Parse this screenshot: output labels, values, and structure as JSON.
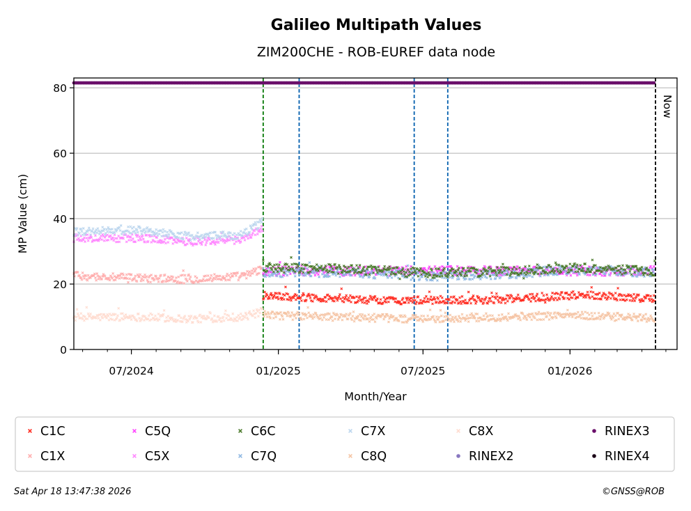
{
  "chart_data": {
    "type": "scatter",
    "title": "Galileo Multipath Values",
    "subtitle": "ZIM200CHE - ROB-EUREF data node",
    "xlabel": "Month/Year",
    "ylabel": "MP Value (cm)",
    "xlim": [
      "2024-04-20",
      "2026-05-15"
    ],
    "ylim": [
      0,
      83
    ],
    "yticks": [
      0,
      20,
      40,
      60,
      80
    ],
    "grid_y": true,
    "xticks": [
      {
        "date": "2024-07-01",
        "label": "07/2024"
      },
      {
        "date": "2025-01-01",
        "label": "01/2025"
      },
      {
        "date": "2025-07-01",
        "label": "07/2025"
      },
      {
        "date": "2026-01-01",
        "label": "01/2026"
      }
    ],
    "now_date": "2026-04-18",
    "now_label": "Now",
    "event_lines": [
      {
        "date": "2024-12-13",
        "color": "#007700"
      },
      {
        "date": "2025-01-27",
        "color": "#005fae"
      },
      {
        "date": "2025-06-20",
        "color": "#005fae"
      },
      {
        "date": "2025-08-01",
        "color": "#005fae"
      }
    ],
    "series": [
      {
        "name": "C1C",
        "color": "#ff2a1f",
        "marker": "x",
        "start": "2024-12-13",
        "end": "2026-04-17",
        "trend": [
          [
            "2024-12-13",
            16.5
          ],
          [
            "2025-05-15",
            15.0
          ],
          [
            "2025-10-01",
            15.2
          ],
          [
            "2026-01-20",
            16.8
          ],
          [
            "2026-04-17",
            15.5
          ]
        ]
      },
      {
        "name": "C1X",
        "color": "#ffadad",
        "marker": "x",
        "start": "2024-04-20",
        "end": "2024-12-12",
        "trend": [
          [
            "2024-04-20",
            22.5
          ],
          [
            "2024-06-15",
            22.0
          ],
          [
            "2024-09-15",
            21.5
          ],
          [
            "2024-11-20",
            22.5
          ],
          [
            "2024-12-12",
            24.5
          ]
        ]
      },
      {
        "name": "C5Q",
        "color": "#ff44ff",
        "marker": "x",
        "start": "2024-12-13",
        "end": "2026-04-17",
        "trend": [
          [
            "2024-12-13",
            24.0
          ],
          [
            "2026-04-17",
            24.0
          ]
        ]
      },
      {
        "name": "C5X",
        "color": "#ff88ff",
        "marker": "x",
        "start": "2024-04-20",
        "end": "2024-12-12",
        "trend": [
          [
            "2024-04-20",
            34.0
          ],
          [
            "2024-07-15",
            34.0
          ],
          [
            "2024-09-15",
            33.0
          ],
          [
            "2024-11-15",
            33.5
          ],
          [
            "2024-12-12",
            37.0
          ]
        ]
      },
      {
        "name": "C6C",
        "color": "#4a7a2a",
        "marker": "x",
        "start": "2024-12-13",
        "end": "2026-04-17",
        "trend": [
          [
            "2024-12-13",
            25.0
          ],
          [
            "2025-03-01",
            24.8
          ],
          [
            "2025-07-15",
            23.3
          ],
          [
            "2025-11-01",
            24.0
          ],
          [
            "2026-01-01",
            25.0
          ],
          [
            "2026-04-17",
            24.0
          ]
        ]
      },
      {
        "name": "C7Q",
        "color": "#8fb8e2",
        "marker": "x",
        "start": "2024-12-13",
        "end": "2026-04-17",
        "trend": [
          [
            "2024-12-13",
            23.5
          ],
          [
            "2025-03-01",
            23.5
          ],
          [
            "2025-07-15",
            22.5
          ],
          [
            "2025-11-01",
            23.2
          ],
          [
            "2026-01-01",
            24.5
          ],
          [
            "2026-04-17",
            23.5
          ]
        ]
      },
      {
        "name": "C7X",
        "color": "#bcd6ee",
        "marker": "x",
        "start": "2024-04-20",
        "end": "2024-12-12",
        "trend": [
          [
            "2024-04-20",
            36.0
          ],
          [
            "2024-07-15",
            36.5
          ],
          [
            "2024-09-15",
            34.5
          ],
          [
            "2024-11-15",
            35.0
          ],
          [
            "2024-12-12",
            39.0
          ]
        ]
      },
      {
        "name": "C8Q",
        "color": "#f5c4a4",
        "marker": "x",
        "start": "2024-12-13",
        "end": "2026-04-17",
        "trend": [
          [
            "2024-12-13",
            10.5
          ],
          [
            "2025-07-01",
            9.3
          ],
          [
            "2026-01-01",
            10.5
          ],
          [
            "2026-04-17",
            9.5
          ]
        ]
      },
      {
        "name": "C8X",
        "color": "#ffdcd0",
        "marker": "x",
        "start": "2024-04-20",
        "end": "2024-12-12",
        "trend": [
          [
            "2024-04-20",
            9.8
          ],
          [
            "2024-07-01",
            10.0
          ],
          [
            "2024-09-15",
            9.3
          ],
          [
            "2024-11-20",
            10.0
          ],
          [
            "2024-12-12",
            11.5
          ]
        ]
      },
      {
        "name": "RINEX2",
        "color": "#8877c0",
        "marker": "dot",
        "start": "",
        "end": "",
        "trend": []
      },
      {
        "name": "RINEX3",
        "color": "#6a0f6a",
        "marker": "dot",
        "start": "2024-04-20",
        "end": "2026-04-17",
        "trend": [
          [
            "2024-04-20",
            81.5
          ],
          [
            "2026-04-17",
            81.5
          ]
        ]
      },
      {
        "name": "RINEX4",
        "color": "#1a0016",
        "marker": "dot",
        "start": "",
        "end": "",
        "trend": []
      }
    ]
  },
  "legend_order": [
    "C1C",
    "C5Q",
    "C6C",
    "C7X",
    "C8X",
    "RINEX3",
    "C1X",
    "C5X",
    "C7Q",
    "C8Q",
    "RINEX2",
    "RINEX4"
  ],
  "footer": {
    "timestamp": "Sat Apr 18 13:47:38 2026",
    "credit": "©GNSS@ROB"
  }
}
